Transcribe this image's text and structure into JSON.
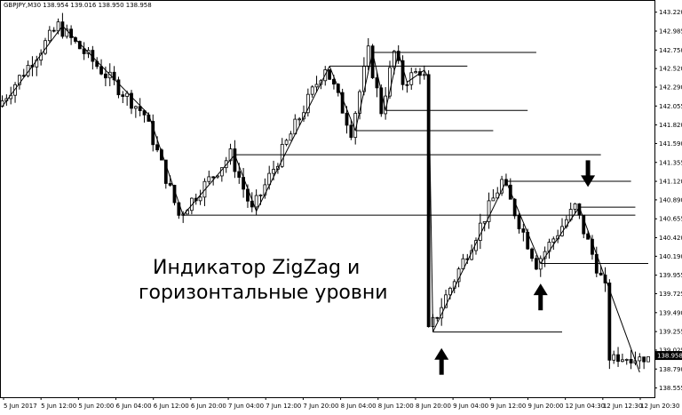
{
  "chart_data": {
    "type": "candlestick",
    "symbol_header": "GBPJPY,M30  138.954 139.016 138.950 138.958",
    "caption_lines": [
      "Индикатор ZigZag и",
      "горизонтальные уровни"
    ],
    "current_price": "138.958",
    "y_ticks": [
      "143.220",
      "142.985",
      "142.750",
      "142.520",
      "142.290",
      "142.055",
      "141.820",
      "141.590",
      "141.355",
      "141.120",
      "140.890",
      "140.655",
      "140.420",
      "140.190",
      "139.955",
      "139.725",
      "139.490",
      "139.255",
      "139.025",
      "138.790",
      "138.555"
    ],
    "ylim": [
      138.555,
      143.22
    ],
    "x_ticks": [
      "5 Jun 2017",
      "5 Jun 12:00",
      "5 Jun 20:00",
      "6 Jun 04:00",
      "6 Jun 12:00",
      "6 Jun 20:00",
      "7 Jun 04:00",
      "7 Jun 12:00",
      "7 Jun 20:00",
      "8 Jun 04:00",
      "8 Jun 12:00",
      "8 Jun 20:00",
      "9 Jun 04:00",
      "9 Jun 12:00",
      "9 Jun 20:00",
      "12 Jun 04:30",
      "12 Jun 12:30",
      "12 Jun 20:30"
    ],
    "bar_count": 140,
    "zigzag": [
      [
        0,
        142.05
      ],
      [
        14,
        143.05
      ],
      [
        34,
        141.95
      ],
      [
        42,
        140.7
      ],
      [
        54,
        141.45
      ],
      [
        59,
        140.75
      ],
      [
        76,
        142.55
      ],
      [
        82,
        141.75
      ],
      [
        86,
        142.72
      ],
      [
        89,
        142.0
      ],
      [
        92,
        142.72
      ],
      [
        94,
        142.35
      ],
      [
        98,
        142.5
      ],
      [
        99,
        142.4
      ],
      [
        100,
        139.25
      ],
      [
        117,
        141.12
      ],
      [
        125,
        140.1
      ],
      [
        134,
        140.8
      ],
      [
        148,
        138.75
      ]
    ],
    "levels": [
      {
        "y": 142.72,
        "x_from": 86,
        "x_to": 124
      },
      {
        "y": 142.55,
        "x_from": 76,
        "x_to": 108
      },
      {
        "y": 142.0,
        "x_from": 89,
        "x_to": 122
      },
      {
        "y": 141.75,
        "x_from": 82,
        "x_to": 114
      },
      {
        "y": 141.45,
        "x_from": 54,
        "x_to": 139
      },
      {
        "y": 141.12,
        "x_from": 117,
        "x_to": 146
      },
      {
        "y": 140.8,
        "x_from": 134,
        "x_to": 147
      },
      {
        "y": 140.7,
        "x_from": 42,
        "x_to": 147
      },
      {
        "y": 140.1,
        "x_from": 125,
        "x_to": 150
      },
      {
        "y": 139.25,
        "x_from": 100,
        "x_to": 130
      }
    ],
    "arrows": [
      {
        "direction": "up",
        "at_bar": 102,
        "y": 139.05
      },
      {
        "direction": "up",
        "at_bar": 125,
        "y": 139.85
      },
      {
        "direction": "down",
        "at_bar": 136,
        "y": 141.05
      }
    ]
  }
}
